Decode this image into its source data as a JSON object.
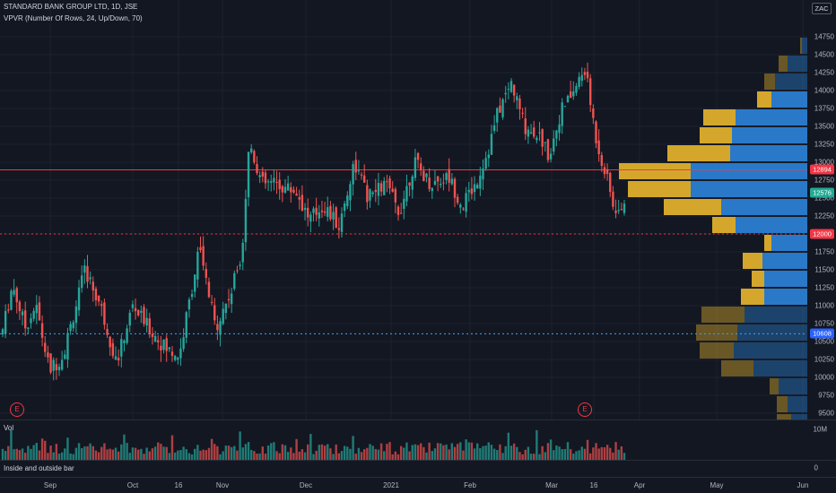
{
  "header": {
    "title": "STANDARD BANK GROUP LTD, 1D, JSE",
    "indicator": "VPVR (Number Of Rows, 24, Up/Down, 70)",
    "currency": "ZAC"
  },
  "price_axis": {
    "labels": [
      "14750",
      "14500",
      "14250",
      "14000",
      "13750",
      "13500",
      "13250",
      "13000",
      "12750",
      "12500",
      "12250",
      "12000",
      "11750",
      "11500",
      "11250",
      "11000",
      "10750",
      "10500",
      "10250",
      "10000",
      "9750",
      "9500"
    ],
    "values": [
      14750,
      14500,
      14250,
      14000,
      13750,
      13500,
      13250,
      13000,
      12750,
      12500,
      12250,
      12000,
      11750,
      11500,
      11250,
      11000,
      10750,
      10500,
      10250,
      10000,
      9750,
      9500
    ]
  },
  "price_tags": [
    {
      "label": "12894",
      "value": 12894,
      "color": "#f23645"
    },
    {
      "label": "12576",
      "value": 12576,
      "color": "#22ab94"
    },
    {
      "label": "12000",
      "value": 12000,
      "color": "#f23645"
    },
    {
      "label": "10608",
      "value": 10608,
      "color": "#2962ff"
    }
  ],
  "lines": [
    {
      "value": 12894,
      "color": "#f23645",
      "style": "solid"
    },
    {
      "value": 12000,
      "color": "#f23645",
      "style": "dotted"
    },
    {
      "value": 10608,
      "color": "#42a5f5",
      "style": "dotted"
    }
  ],
  "volume_pane": {
    "label": "Vol",
    "axis_label": "10M"
  },
  "indicator_pane": {
    "label": "Inside and outside bar",
    "axis_label": "0"
  },
  "earnings_markers": [
    {
      "label": "E"
    },
    {
      "label": "E"
    }
  ],
  "time_axis": [
    "Sep",
    "Oct",
    "16",
    "Nov",
    "Dec",
    "2021",
    "Feb",
    "Mar",
    "16",
    "Apr",
    "May",
    "Jun"
  ],
  "colors": {
    "up": "#26a69a",
    "down": "#ef5350",
    "vp_up": "#2979c8",
    "vp_down": "#d4a72c"
  },
  "chart_data": {
    "type": "candlestick",
    "x_range": [
      "Aug 2020",
      "Jun 2021"
    ],
    "ylim": [
      9500,
      14750
    ],
    "key_points": [
      {
        "date": "late Aug 2020",
        "close": 10600
      },
      {
        "date": "early Sep 2020",
        "close": 11400
      },
      {
        "date": "mid Sep 2020",
        "close": 10200
      },
      {
        "date": "late Sep 2020",
        "close": 11300
      },
      {
        "date": "early Oct 2020",
        "close": 10400
      },
      {
        "date": "mid Oct 2020",
        "close": 11000
      },
      {
        "date": "late Oct 2020",
        "close": 11800
      },
      {
        "date": "early Nov 2020",
        "close": 10700
      },
      {
        "date": "mid Nov 2020",
        "close": 13300
      },
      {
        "date": "Dec 2020",
        "close": 12400
      },
      {
        "date": "Jan 2021",
        "close": 12600
      },
      {
        "date": "Feb 2021",
        "close": 13600
      },
      {
        "date": "late Feb 2021",
        "close": 14100
      },
      {
        "date": "Mar 2021",
        "close": 13300
      },
      {
        "date": "mid Mar 2021",
        "close": 14300
      },
      {
        "date": "late Mar 2021",
        "close": 12500
      }
    ],
    "volume_profile_rows": 24
  }
}
